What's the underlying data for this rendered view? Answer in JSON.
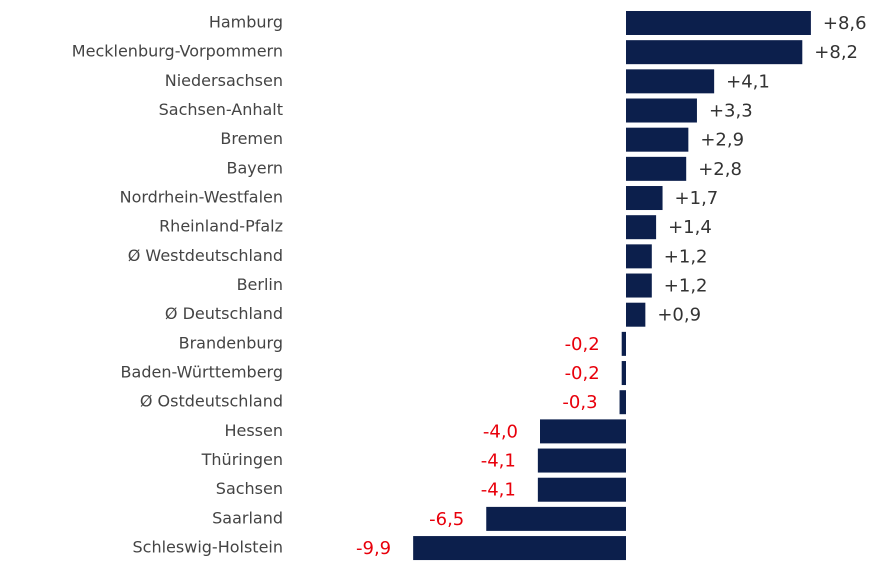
{
  "chart_data": {
    "type": "bar",
    "orientation": "horizontal",
    "color": "#0c1f4c",
    "categories": [
      "Hamburg",
      "Mecklenburg-Vorpommern",
      "Niedersachsen",
      "Sachsen-Anhalt",
      "Bremen",
      "Bayern",
      "Nordrhein-Westfalen",
      "Rheinland-Pfalz",
      "Ø Westdeutschland",
      "Berlin",
      "Ø Deutschland",
      "Brandenburg",
      "Baden-Württemberg",
      "Ø Ostdeutschland",
      "Hessen",
      "Thüringen",
      "Sachsen",
      "Saarland",
      "Schleswig-Holstein"
    ],
    "values": [
      8.6,
      8.2,
      4.1,
      3.3,
      2.9,
      2.8,
      1.7,
      1.4,
      1.2,
      1.2,
      0.9,
      -0.2,
      -0.2,
      -0.3,
      -4.0,
      -4.1,
      -4.1,
      -6.5,
      -9.9
    ],
    "value_labels": [
      "+8,6",
      "+8,2",
      "+4,1",
      "+3,3",
      "+2,9",
      "+2,8",
      "+1,7",
      "+1,4",
      "+1,2",
      "+1,2",
      "+0,9",
      "-0,2",
      "-0,2",
      "-0,3",
      "-4,0",
      "-4,1",
      "-4,1",
      "-6,5",
      "-9,9"
    ]
  }
}
